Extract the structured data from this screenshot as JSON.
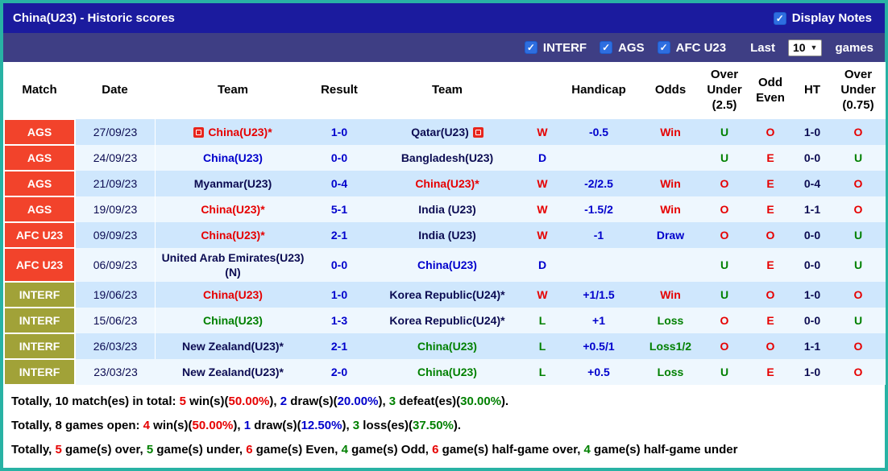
{
  "colors": {
    "frame": "#28b2a4",
    "topbar_bg": "#1b1b9e",
    "filterbar_bg": "#3e3e84",
    "competition_red": "#f2432b",
    "competition_olive": "#a1a238",
    "row_odd": "#cfe7fd",
    "row_even": "#eef7fe",
    "text_red": "#e60000",
    "text_blue": "#0000cc",
    "text_green": "#008000",
    "text_navy": "#0c0c52",
    "checkbox_blue": "#2e6ee0"
  },
  "topbar": {
    "title": "China(U23) - Historic scores",
    "display_notes": {
      "label": "Display Notes",
      "checked": true
    }
  },
  "filterbar": {
    "checkboxes": [
      {
        "label": "INTERF",
        "checked": true
      },
      {
        "label": "AGS",
        "checked": true
      },
      {
        "label": "AFC U23",
        "checked": true
      }
    ],
    "last_label": "Last",
    "selected_games": "10",
    "games_label": "games"
  },
  "table": {
    "headers": [
      "Match",
      "Date",
      "Team",
      "Result",
      "Team",
      "",
      "Handicap",
      "Odds",
      "Over Under (2.5)",
      "Odd Even",
      "HT",
      "Over Under (0.75)"
    ],
    "rows": [
      {
        "comp": "AGS",
        "comp_style": "red",
        "date": "27/09/23",
        "team1": {
          "text": "China(U23)*",
          "color": "red",
          "icon": "left"
        },
        "result": "1-0",
        "team2": {
          "text": "Qatar(U23)",
          "color": "navy",
          "icon": "right"
        },
        "wdl": {
          "text": "W",
          "color": "red"
        },
        "handicap": "-0.5",
        "odds": {
          "text": "Win",
          "color": "red"
        },
        "ou25": {
          "text": "U",
          "color": "green"
        },
        "odd_even": {
          "text": "O",
          "color": "red"
        },
        "ht": "1-0",
        "ou075": {
          "text": "O",
          "color": "red"
        }
      },
      {
        "comp": "AGS",
        "comp_style": "red",
        "date": "24/09/23",
        "team1": {
          "text": "China(U23)",
          "color": "blue"
        },
        "result": "0-0",
        "team2": {
          "text": "Bangladesh(U23)",
          "color": "navy"
        },
        "wdl": {
          "text": "D",
          "color": "blue"
        },
        "handicap": "",
        "odds": {
          "text": "",
          "color": "navy"
        },
        "ou25": {
          "text": "U",
          "color": "green"
        },
        "odd_even": {
          "text": "E",
          "color": "red"
        },
        "ht": "0-0",
        "ou075": {
          "text": "U",
          "color": "green"
        }
      },
      {
        "comp": "AGS",
        "comp_style": "red",
        "date": "21/09/23",
        "team1": {
          "text": "Myanmar(U23)",
          "color": "navy"
        },
        "result": "0-4",
        "team2": {
          "text": "China(U23)*",
          "color": "red"
        },
        "wdl": {
          "text": "W",
          "color": "red"
        },
        "handicap": "-2/2.5",
        "odds": {
          "text": "Win",
          "color": "red"
        },
        "ou25": {
          "text": "O",
          "color": "red"
        },
        "odd_even": {
          "text": "E",
          "color": "red"
        },
        "ht": "0-4",
        "ou075": {
          "text": "O",
          "color": "red"
        }
      },
      {
        "comp": "AGS",
        "comp_style": "red",
        "date": "19/09/23",
        "team1": {
          "text": "China(U23)*",
          "color": "red"
        },
        "result": "5-1",
        "team2": {
          "text": "India (U23)",
          "color": "navy"
        },
        "wdl": {
          "text": "W",
          "color": "red"
        },
        "handicap": "-1.5/2",
        "odds": {
          "text": "Win",
          "color": "red"
        },
        "ou25": {
          "text": "O",
          "color": "red"
        },
        "odd_even": {
          "text": "E",
          "color": "red"
        },
        "ht": "1-1",
        "ou075": {
          "text": "O",
          "color": "red"
        }
      },
      {
        "comp": "AFC U23",
        "comp_style": "red",
        "date": "09/09/23",
        "team1": {
          "text": "China(U23)*",
          "color": "red"
        },
        "result": "2-1",
        "team2": {
          "text": "India (U23)",
          "color": "navy"
        },
        "wdl": {
          "text": "W",
          "color": "red"
        },
        "handicap": "-1",
        "odds": {
          "text": "Draw",
          "color": "blue"
        },
        "ou25": {
          "text": "O",
          "color": "red"
        },
        "odd_even": {
          "text": "O",
          "color": "red"
        },
        "ht": "0-0",
        "ou075": {
          "text": "U",
          "color": "green"
        }
      },
      {
        "comp": "AFC U23",
        "comp_style": "red",
        "date": "06/09/23",
        "team1": {
          "text": "United Arab Emirates(U23)(N)",
          "color": "navy"
        },
        "result": "0-0",
        "team2": {
          "text": "China(U23)",
          "color": "blue"
        },
        "wdl": {
          "text": "D",
          "color": "blue"
        },
        "handicap": "",
        "odds": {
          "text": "",
          "color": "navy"
        },
        "ou25": {
          "text": "U",
          "color": "green"
        },
        "odd_even": {
          "text": "E",
          "color": "red"
        },
        "ht": "0-0",
        "ou075": {
          "text": "U",
          "color": "green"
        }
      },
      {
        "comp": "INTERF",
        "comp_style": "olive",
        "date": "19/06/23",
        "team1": {
          "text": "China(U23)",
          "color": "red"
        },
        "result": "1-0",
        "team2": {
          "text": "Korea Republic(U24)*",
          "color": "navy"
        },
        "wdl": {
          "text": "W",
          "color": "red"
        },
        "handicap": "+1/1.5",
        "odds": {
          "text": "Win",
          "color": "red"
        },
        "ou25": {
          "text": "U",
          "color": "green"
        },
        "odd_even": {
          "text": "O",
          "color": "red"
        },
        "ht": "1-0",
        "ou075": {
          "text": "O",
          "color": "red"
        }
      },
      {
        "comp": "INTERF",
        "comp_style": "olive",
        "date": "15/06/23",
        "team1": {
          "text": "China(U23)",
          "color": "green"
        },
        "result": "1-3",
        "team2": {
          "text": "Korea Republic(U24)*",
          "color": "navy"
        },
        "wdl": {
          "text": "L",
          "color": "green"
        },
        "handicap": "+1",
        "odds": {
          "text": "Loss",
          "color": "green"
        },
        "ou25": {
          "text": "O",
          "color": "red"
        },
        "odd_even": {
          "text": "E",
          "color": "red"
        },
        "ht": "0-0",
        "ou075": {
          "text": "U",
          "color": "green"
        }
      },
      {
        "comp": "INTERF",
        "comp_style": "olive",
        "date": "26/03/23",
        "team1": {
          "text": "New Zealand(U23)*",
          "color": "navy"
        },
        "result": "2-1",
        "team2": {
          "text": "China(U23)",
          "color": "green"
        },
        "wdl": {
          "text": "L",
          "color": "green"
        },
        "handicap": "+0.5/1",
        "odds": {
          "text": "Loss1/2",
          "color": "green"
        },
        "ou25": {
          "text": "O",
          "color": "red"
        },
        "odd_even": {
          "text": "O",
          "color": "red"
        },
        "ht": "1-1",
        "ou075": {
          "text": "O",
          "color": "red"
        }
      },
      {
        "comp": "INTERF",
        "comp_style": "olive",
        "date": "23/03/23",
        "team1": {
          "text": "New Zealand(U23)*",
          "color": "navy"
        },
        "result": "2-0",
        "team2": {
          "text": "China(U23)",
          "color": "green"
        },
        "wdl": {
          "text": "L",
          "color": "green"
        },
        "handicap": "+0.5",
        "odds": {
          "text": "Loss",
          "color": "green"
        },
        "ou25": {
          "text": "U",
          "color": "green"
        },
        "odd_even": {
          "text": "E",
          "color": "red"
        },
        "ht": "1-0",
        "ou075": {
          "text": "O",
          "color": "red"
        }
      }
    ]
  },
  "summary": {
    "lines": [
      [
        {
          "t": "Totally, ",
          "c": "black"
        },
        {
          "t": "10",
          "c": "black"
        },
        {
          "t": " match(es) in total: ",
          "c": "black"
        },
        {
          "t": "5",
          "c": "red"
        },
        {
          "t": " win(s)(",
          "c": "black"
        },
        {
          "t": "50.00%",
          "c": "red"
        },
        {
          "t": "), ",
          "c": "black"
        },
        {
          "t": "2",
          "c": "blue"
        },
        {
          "t": " draw(s)(",
          "c": "black"
        },
        {
          "t": "20.00%",
          "c": "blue"
        },
        {
          "t": "), ",
          "c": "black"
        },
        {
          "t": "3",
          "c": "green"
        },
        {
          "t": " defeat(es)(",
          "c": "black"
        },
        {
          "t": "30.00%",
          "c": "green"
        },
        {
          "t": ").",
          "c": "black"
        }
      ],
      [
        {
          "t": "Totally, ",
          "c": "black"
        },
        {
          "t": "8",
          "c": "black"
        },
        {
          "t": " games open: ",
          "c": "black"
        },
        {
          "t": "4",
          "c": "red"
        },
        {
          "t": " win(s)(",
          "c": "black"
        },
        {
          "t": "50.00%",
          "c": "red"
        },
        {
          "t": "), ",
          "c": "black"
        },
        {
          "t": "1",
          "c": "blue"
        },
        {
          "t": " draw(s)(",
          "c": "black"
        },
        {
          "t": "12.50%",
          "c": "blue"
        },
        {
          "t": "), ",
          "c": "black"
        },
        {
          "t": "3",
          "c": "green"
        },
        {
          "t": " loss(es)(",
          "c": "black"
        },
        {
          "t": "37.50%",
          "c": "green"
        },
        {
          "t": ").",
          "c": "black"
        }
      ],
      [
        {
          "t": "Totally, ",
          "c": "black"
        },
        {
          "t": "5",
          "c": "red"
        },
        {
          "t": " game(s) over, ",
          "c": "black"
        },
        {
          "t": "5",
          "c": "green"
        },
        {
          "t": " game(s) under, ",
          "c": "black"
        },
        {
          "t": "6",
          "c": "red"
        },
        {
          "t": " game(s) Even, ",
          "c": "black"
        },
        {
          "t": "4",
          "c": "green"
        },
        {
          "t": " game(s) Odd, ",
          "c": "black"
        },
        {
          "t": "6",
          "c": "red"
        },
        {
          "t": " game(s) half-game over, ",
          "c": "black"
        },
        {
          "t": "4",
          "c": "green"
        },
        {
          "t": " game(s) half-game under",
          "c": "black"
        }
      ]
    ]
  }
}
